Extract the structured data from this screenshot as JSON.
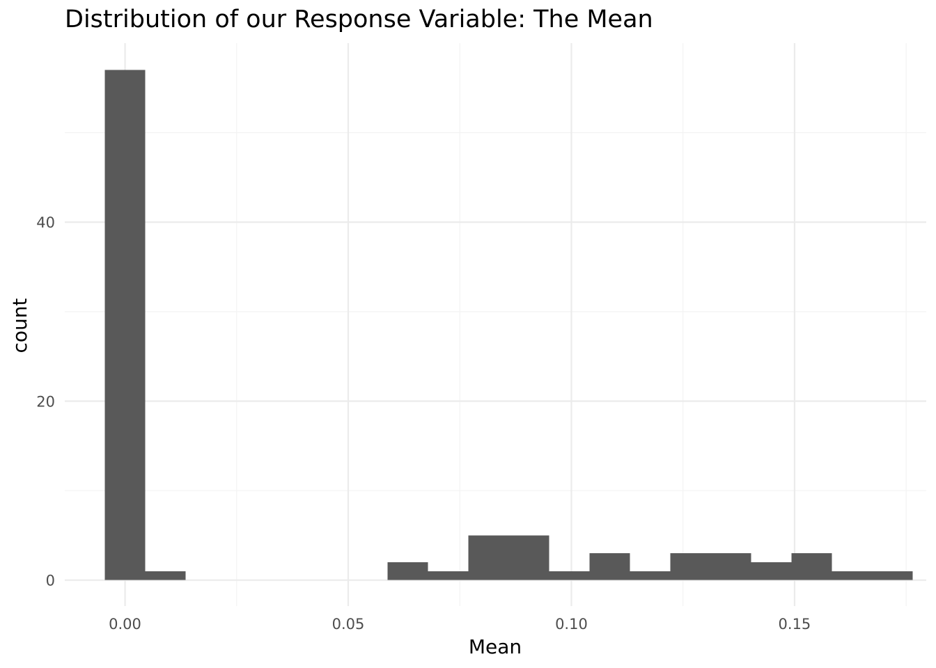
{
  "chart_data": {
    "type": "bar",
    "title": "Distribution of our Response Variable: The Mean",
    "xlabel": "Mean",
    "ylabel": "count",
    "xlim": [
      -0.0135,
      0.1795
    ],
    "ylim": [
      -2.9,
      60
    ],
    "x_ticks": [
      {
        "value": 0.0,
        "label": "0.00"
      },
      {
        "value": 0.05,
        "label": "0.05"
      },
      {
        "value": 0.1,
        "label": "0.10"
      },
      {
        "value": 0.15,
        "label": "0.15"
      }
    ],
    "y_ticks": [
      {
        "value": 0,
        "label": "0"
      },
      {
        "value": 20,
        "label": "20"
      },
      {
        "value": 40,
        "label": "40"
      }
    ],
    "minor_x": [
      0.025,
      0.075,
      0.125,
      0.175
    ],
    "minor_y": [
      10,
      30,
      50
    ],
    "bin_width": 0.00905,
    "bins": [
      {
        "x0": -0.0045,
        "count": 57
      },
      {
        "x0": 0.00455,
        "count": 1
      },
      {
        "x0": 0.0588,
        "count": 2
      },
      {
        "x0": 0.06785,
        "count": 1
      },
      {
        "x0": 0.0769,
        "count": 5
      },
      {
        "x0": 0.08595,
        "count": 5
      },
      {
        "x0": 0.095,
        "count": 1
      },
      {
        "x0": 0.10405,
        "count": 3
      },
      {
        "x0": 0.1131,
        "count": 1
      },
      {
        "x0": 0.12215,
        "count": 3
      },
      {
        "x0": 0.1312,
        "count": 3
      },
      {
        "x0": 0.14025,
        "count": 2
      },
      {
        "x0": 0.1493,
        "count": 3
      },
      {
        "x0": 0.15835,
        "count": 1
      },
      {
        "x0": 0.1674,
        "count": 1
      }
    ],
    "bar_color": "#595959",
    "grid_major_color": "#ebebeb",
    "grid_minor_color": "#f3f3f3",
    "grid": true,
    "legend": "none"
  }
}
